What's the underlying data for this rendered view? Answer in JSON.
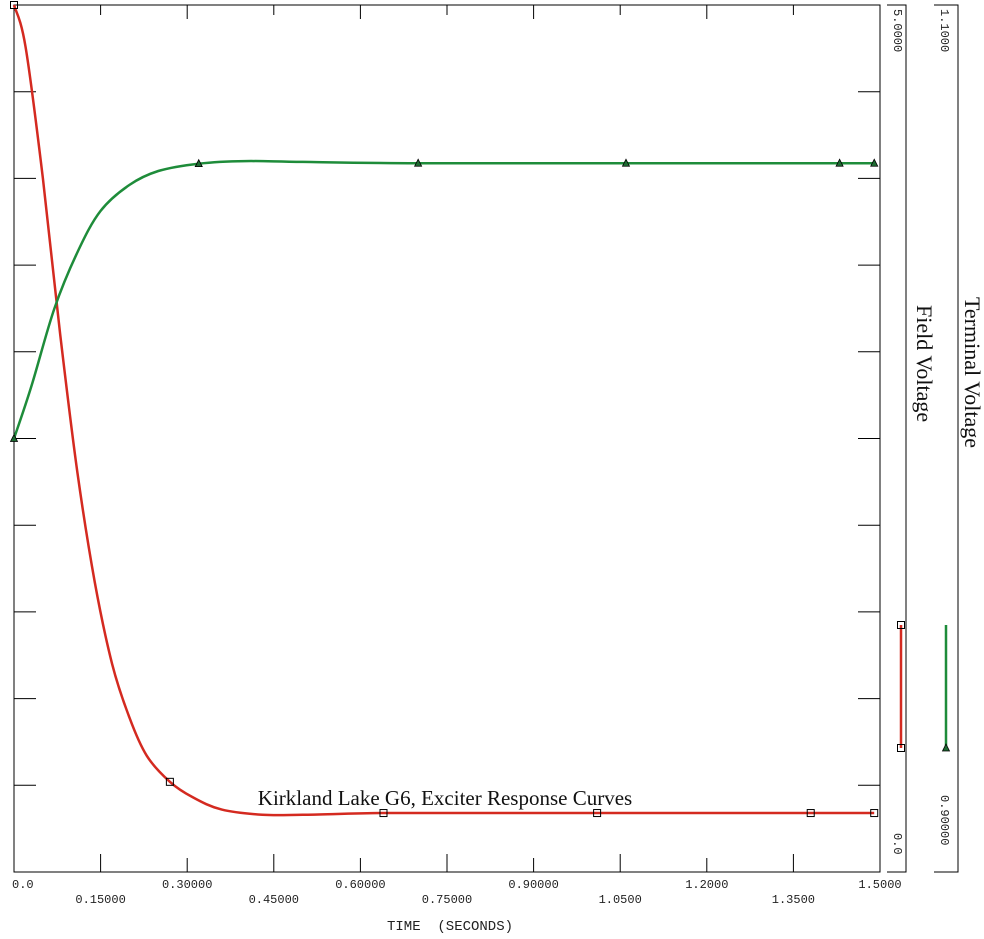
{
  "chart_data": {
    "type": "line",
    "title": "Kirkland Lake G6, Exciter Response Curves",
    "xlabel": "TIME  (SECONDS)",
    "xlim": [
      0,
      1.5
    ],
    "x_ticks_top": [
      "0.0",
      "0.30000",
      "0.60000",
      "0.90000",
      "1.2000",
      "1.5000"
    ],
    "x_ticks_bottom": [
      "0.15000",
      "0.45000",
      "0.75000",
      "1.0500",
      "1.3500"
    ],
    "axes": [
      {
        "id": "field",
        "label": "Field Voltage",
        "tick_top": "5.0000",
        "tick_bottom": "0.0",
        "range": [
          0,
          5
        ],
        "color": "#d42a20"
      },
      {
        "id": "terminal",
        "label": "Terminal Voltage",
        "tick_top": "1.1000",
        "tick_bottom": "0.90000",
        "range": [
          0.9,
          1.1
        ],
        "color": "#1e8c3a"
      }
    ],
    "series": [
      {
        "axis": "field",
        "marker": "square",
        "color": "#d42a20",
        "x": [
          0,
          0.02,
          0.05,
          0.08,
          0.11,
          0.14,
          0.17,
          0.2,
          0.23,
          0.27,
          0.31,
          0.36,
          0.43,
          0.5,
          0.64,
          0.8,
          1.01,
          1.2,
          1.38,
          1.49
        ],
        "y": [
          5.0,
          4.76,
          4.0,
          3.1,
          2.3,
          1.67,
          1.2,
          0.89,
          0.67,
          0.52,
          0.43,
          0.36,
          0.33,
          0.33,
          0.34,
          0.34,
          0.34,
          0.34,
          0.34,
          0.34
        ],
        "marker_x": [
          0,
          0.27,
          0.64,
          1.01,
          1.38,
          1.49
        ]
      },
      {
        "axis": "terminal",
        "marker": "triangle",
        "color": "#1e8c3a",
        "x": [
          0,
          0.03,
          0.07,
          0.11,
          0.15,
          0.2,
          0.25,
          0.32,
          0.4,
          0.5,
          0.7,
          1.06,
          1.43,
          1.49
        ],
        "y": [
          1.0,
          1.012,
          1.03,
          1.043,
          1.0525,
          1.0585,
          1.0617,
          1.0634,
          1.064,
          1.0638,
          1.0635,
          1.0635,
          1.0635,
          1.0635
        ],
        "marker_x": [
          0,
          0.32,
          0.7,
          1.06,
          1.43,
          1.49
        ]
      }
    ]
  }
}
